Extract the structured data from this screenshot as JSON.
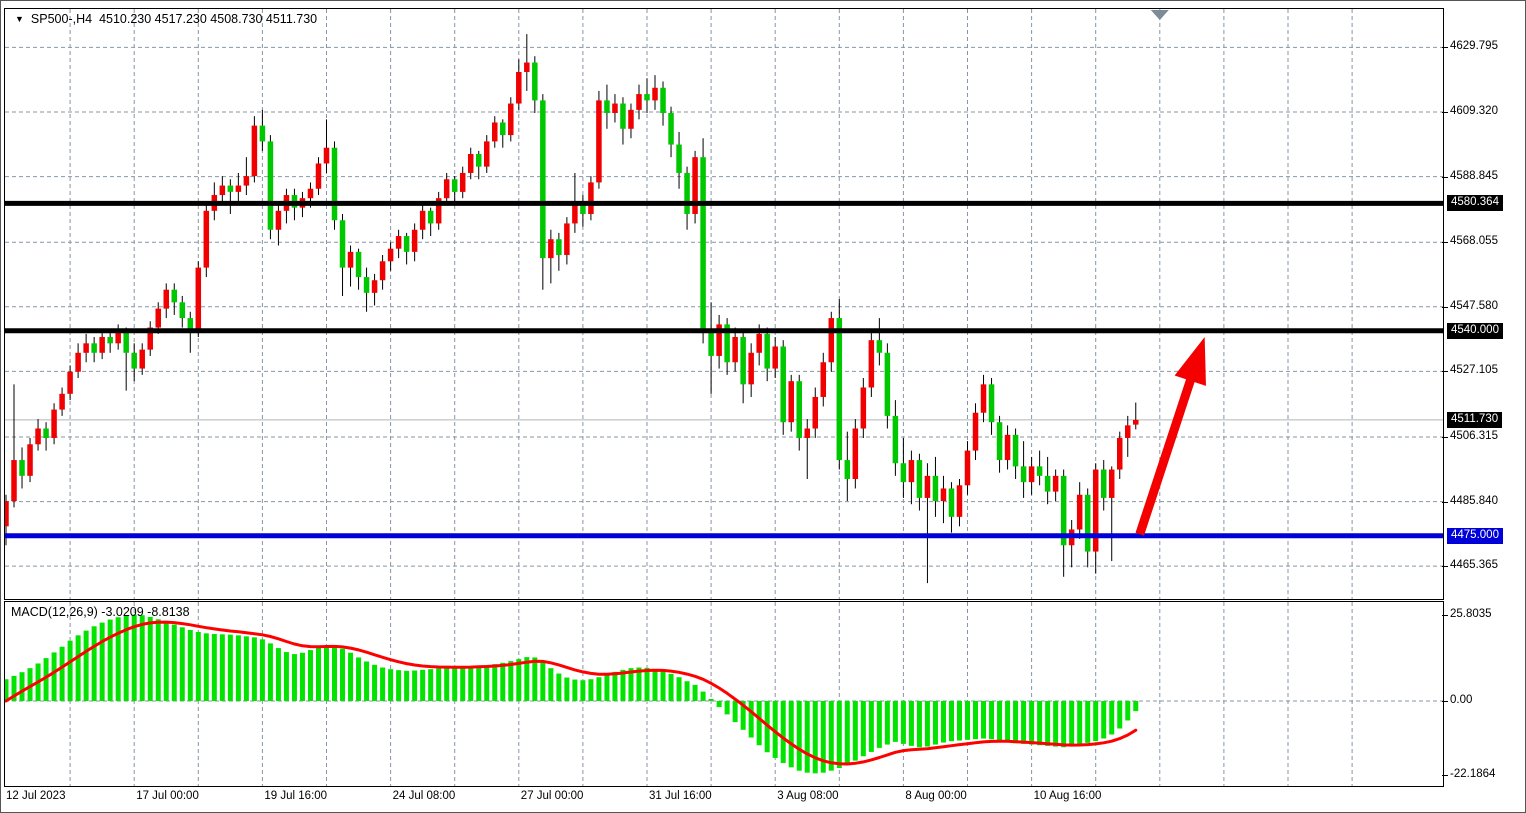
{
  "header": {
    "dropdown_icon": "▼",
    "title": "SP500-,H4",
    "ohlc_values": "4510.230 4517.230 4508.730 4511.730"
  },
  "indicator_label": "MACD(12,26,9) -3.0209 -8.8138",
  "price_axis": {
    "ticks": [
      "4629.795",
      "4609.320",
      "4588.845",
      "4568.055",
      "4547.580",
      "4527.105",
      "4506.315",
      "4485.840",
      "4465.365"
    ],
    "level_labels": [
      {
        "value": "4580.364",
        "price": 4580.364,
        "bg": "#000000",
        "fg": "#ffffff"
      },
      {
        "value": "4540.000",
        "price": 4540.0,
        "bg": "#000000",
        "fg": "#ffffff"
      },
      {
        "value": "4511.730",
        "price": 4511.73,
        "bg": "#000000",
        "fg": "#ffffff"
      },
      {
        "value": "4475.000",
        "price": 4475.0,
        "bg": "#0000d8",
        "fg": "#ffffff"
      }
    ]
  },
  "macd_axis": {
    "ticks": [
      {
        "value": "25.8035",
        "v": 25.8035
      },
      {
        "value": "0.00",
        "v": 0.0
      },
      {
        "value": "-22.1864",
        "v": -22.1864
      }
    ]
  },
  "time_axis": {
    "labels": [
      {
        "bar": 0,
        "text": "12 Jul 2023"
      },
      {
        "bar": 16,
        "text": "17 Jul 00:00"
      },
      {
        "bar": 32,
        "text": "19 Jul 16:00"
      },
      {
        "bar": 48,
        "text": "24 Jul 08:00"
      },
      {
        "bar": 64,
        "text": "27 Jul 00:00"
      },
      {
        "bar": 80,
        "text": "31 Jul 16:00"
      },
      {
        "bar": 96,
        "text": "3 Aug 08:00"
      },
      {
        "bar": 112,
        "text": "8 Aug 00:00"
      },
      {
        "bar": 128,
        "text": "10 Aug 16:00"
      }
    ]
  },
  "colors": {
    "bull_candle": "#f00000",
    "bear_candle": "#00c800",
    "wick": "#000000",
    "grid": "#8796a5",
    "histogram": "#00e400",
    "signal_line": "#ff0000",
    "level_black": "#000000",
    "level_blue": "#0000d8",
    "arrow": "#f40000",
    "current_price_line": "#b2b5b9",
    "shift_marker": "#7d8b97"
  },
  "chart_data": {
    "type": "candlestick_with_macd",
    "symbol": "SP500-",
    "timeframe": "H4",
    "price_ticks": [
      4629.795,
      4609.32,
      4588.845,
      4568.055,
      4547.58,
      4527.105,
      4506.315,
      4485.84,
      4465.365
    ],
    "price_range_visible": [
      4455,
      4640
    ],
    "grid_every_bars": 8,
    "max_gridline_bar": 168,
    "shift_marker_bar": 144,
    "current_price": 4511.73,
    "levels": [
      {
        "price": 4580.364,
        "color": "#000000",
        "width": 5,
        "label": "4580.364"
      },
      {
        "price": 4540.0,
        "color": "#000000",
        "width": 5,
        "label": "4540.000"
      },
      {
        "price": 4475.0,
        "color": "#0000d8",
        "width": 5,
        "label": "4475.000"
      }
    ],
    "arrow": {
      "from_bar": 141.5,
      "from_price": 4475.5,
      "to_bar": 149.6,
      "to_price": 4538.0
    },
    "candles": [
      [
        4478,
        4488,
        4472,
        4486
      ],
      [
        4486,
        4523,
        4484,
        4499
      ],
      [
        4499,
        4503,
        4490,
        4494
      ],
      [
        4494,
        4506,
        4492,
        4504
      ],
      [
        4504,
        4512,
        4502,
        4509
      ],
      [
        4509,
        4511,
        4502,
        4506
      ],
      [
        4506,
        4517,
        4504,
        4515
      ],
      [
        4515,
        4522,
        4513,
        4520
      ],
      [
        4520,
        4529,
        4518,
        4527
      ],
      [
        4527,
        4536,
        4525,
        4533
      ],
      [
        4533,
        4539,
        4530,
        4536
      ],
      [
        4536,
        4538,
        4530,
        4533
      ],
      [
        4533,
        4540,
        4531,
        4538
      ],
      [
        4538,
        4540,
        4533,
        4536
      ],
      [
        4536,
        4542,
        4534,
        4540
      ],
      [
        4540,
        4541,
        4521,
        4533
      ],
      [
        4533,
        4536,
        4524,
        4528
      ],
      [
        4528,
        4536,
        4526,
        4534
      ],
      [
        4534,
        4543,
        4532,
        4541
      ],
      [
        4541,
        4549,
        4539,
        4547
      ],
      [
        4547,
        4555,
        4544,
        4553
      ],
      [
        4553,
        4555,
        4545,
        4549
      ],
      [
        4549,
        4551,
        4541,
        4544
      ],
      [
        4544,
        4546,
        4533,
        4540
      ],
      [
        4540,
        4562,
        4538,
        4560
      ],
      [
        4560,
        4581,
        4557,
        4578
      ],
      [
        4578,
        4587,
        4575,
        4583
      ],
      [
        4583,
        4589,
        4580,
        4586
      ],
      [
        4586,
        4588,
        4577,
        4584
      ],
      [
        4584,
        4590,
        4581,
        4586
      ],
      [
        4586,
        4595,
        4583,
        4589
      ],
      [
        4589,
        4608,
        4587,
        4605
      ],
      [
        4605,
        4610,
        4597,
        4600
      ],
      [
        4600,
        4602,
        4569,
        4572
      ],
      [
        4572,
        4580,
        4567,
        4578
      ],
      [
        4578,
        4585,
        4574,
        4583
      ],
      [
        4583,
        4585,
        4575,
        4579
      ],
      [
        4579,
        4584,
        4576,
        4582
      ],
      [
        4582,
        4587,
        4579,
        4585
      ],
      [
        4585,
        4595,
        4583,
        4593
      ],
      [
        4593,
        4607,
        4590,
        4598
      ],
      [
        4598,
        4600,
        4572,
        4575
      ],
      [
        4575,
        4577,
        4551,
        4560
      ],
      [
        4560,
        4567,
        4554,
        4565
      ],
      [
        4565,
        4566,
        4553,
        4557
      ],
      [
        4557,
        4560,
        4546,
        4552
      ],
      [
        4552,
        4558,
        4548,
        4556
      ],
      [
        4556,
        4564,
        4553,
        4562
      ],
      [
        4562,
        4568,
        4559,
        4566
      ],
      [
        4566,
        4572,
        4563,
        4570
      ],
      [
        4570,
        4571,
        4561,
        4565
      ],
      [
        4565,
        4574,
        4562,
        4572
      ],
      [
        4572,
        4580,
        4569,
        4578
      ],
      [
        4578,
        4579,
        4570,
        4574
      ],
      [
        4574,
        4584,
        4572,
        4582
      ],
      [
        4582,
        4590,
        4580,
        4588
      ],
      [
        4588,
        4589,
        4580,
        4584
      ],
      [
        4584,
        4592,
        4582,
        4590
      ],
      [
        4590,
        4598,
        4588,
        4596
      ],
      [
        4596,
        4597,
        4588,
        4592
      ],
      [
        4592,
        4602,
        4590,
        4600
      ],
      [
        4600,
        4608,
        4598,
        4606
      ],
      [
        4606,
        4607,
        4598,
        4602
      ],
      [
        4602,
        4614,
        4600,
        4612
      ],
      [
        4612,
        4626,
        4610,
        4622
      ],
      [
        4622,
        4634,
        4616,
        4625
      ],
      [
        4625,
        4627,
        4609,
        4613
      ],
      [
        4613,
        4615,
        4553,
        4563
      ],
      [
        4563,
        4572,
        4555,
        4569
      ],
      [
        4569,
        4571,
        4559,
        4564
      ],
      [
        4564,
        4576,
        4561,
        4574
      ],
      [
        4574,
        4590,
        4571,
        4581
      ],
      [
        4581,
        4583,
        4573,
        4577
      ],
      [
        4577,
        4589,
        4575,
        4587
      ],
      [
        4587,
        4616,
        4585,
        4613
      ],
      [
        4613,
        4618,
        4604,
        4609
      ],
      [
        4609,
        4615,
        4606,
        4612
      ],
      [
        4612,
        4614,
        4599,
        4604
      ],
      [
        4604,
        4612,
        4601,
        4610
      ],
      [
        4610,
        4618,
        4607,
        4615
      ],
      [
        4615,
        4620,
        4609,
        4613
      ],
      [
        4613,
        4621,
        4610,
        4617
      ],
      [
        4617,
        4619,
        4605,
        4609
      ],
      [
        4609,
        4611,
        4595,
        4599
      ],
      [
        4599,
        4603,
        4585,
        4590
      ],
      [
        4590,
        4592,
        4572,
        4577
      ],
      [
        4577,
        4597,
        4574,
        4595
      ],
      [
        4595,
        4601,
        4536,
        4540
      ],
      [
        4540,
        4549,
        4520,
        4532
      ],
      [
        4532,
        4545,
        4528,
        4542
      ],
      [
        4542,
        4544,
        4526,
        4530
      ],
      [
        4530,
        4541,
        4527,
        4538
      ],
      [
        4538,
        4540,
        4517,
        4523
      ],
      [
        4523,
        4536,
        4519,
        4533
      ],
      [
        4533,
        4542,
        4529,
        4539
      ],
      [
        4539,
        4541,
        4524,
        4528
      ],
      [
        4528,
        4538,
        4525,
        4535
      ],
      [
        4535,
        4537,
        4507,
        4511
      ],
      [
        4511,
        4526,
        4508,
        4524
      ],
      [
        4524,
        4526,
        4502,
        4506
      ],
      [
        4506,
        4512,
        4493,
        4509
      ],
      [
        4509,
        4522,
        4506,
        4519
      ],
      [
        4519,
        4533,
        4516,
        4530
      ],
      [
        4530,
        4546,
        4527,
        4544
      ],
      [
        4544,
        4550,
        4496,
        4499
      ],
      [
        4499,
        4508,
        4486,
        4493
      ],
      [
        4493,
        4512,
        4490,
        4509
      ],
      [
        4509,
        4525,
        4506,
        4522
      ],
      [
        4522,
        4540,
        4519,
        4537
      ],
      [
        4537,
        4544,
        4529,
        4533
      ],
      [
        4533,
        4536,
        4509,
        4513
      ],
      [
        4513,
        4518,
        4494,
        4498
      ],
      [
        4498,
        4506,
        4487,
        4492
      ],
      [
        4492,
        4502,
        4485,
        4499
      ],
      [
        4499,
        4501,
        4483,
        4487
      ],
      [
        4487,
        4498,
        4460,
        4494
      ],
      [
        4494,
        4500,
        4481,
        4486
      ],
      [
        4486,
        4494,
        4479,
        4490
      ],
      [
        4490,
        4492,
        4476,
        4481
      ],
      [
        4481,
        4493,
        4478,
        4491
      ],
      [
        4491,
        4505,
        4488,
        4502
      ],
      [
        4502,
        4517,
        4499,
        4514
      ],
      [
        4514,
        4526,
        4511,
        4523
      ],
      [
        4523,
        4525,
        4507,
        4511
      ],
      [
        4511,
        4513,
        4495,
        4499
      ],
      [
        4499,
        4510,
        4496,
        4507
      ],
      [
        4507,
        4509,
        4493,
        4497
      ],
      [
        4497,
        4505,
        4487,
        4492
      ],
      [
        4492,
        4500,
        4488,
        4497
      ],
      [
        4497,
        4502,
        4491,
        4494
      ],
      [
        4494,
        4500,
        4485,
        4489
      ],
      [
        4489,
        4496,
        4486,
        4494
      ],
      [
        4494,
        4496,
        4462,
        4472
      ],
      [
        4472,
        4480,
        4465,
        4477
      ],
      [
        4477,
        4492,
        4474,
        4488
      ],
      [
        4488,
        4490,
        4465,
        4470
      ],
      [
        4470,
        4498,
        4463,
        4496
      ],
      [
        4496,
        4499,
        4483,
        4487
      ],
      [
        4487,
        4497,
        4467,
        4496
      ],
      [
        4496,
        4508,
        4493,
        4506
      ],
      [
        4506,
        4513,
        4500,
        4510
      ],
      [
        4510.23,
        4517.23,
        4508.73,
        4511.73
      ]
    ],
    "macd": {
      "params": "12,26,9",
      "main_last": -3.0209,
      "signal_last": -8.8138,
      "signal_period": 9,
      "histogram": [
        6.5,
        7.5,
        8.6,
        9.8,
        11.2,
        12.8,
        14.5,
        16.2,
        18.0,
        19.6,
        21.0,
        22.3,
        23.4,
        24.3,
        25.0,
        25.5,
        25.8,
        25.6,
        25.1,
        24.4,
        23.6,
        22.8,
        22.0,
        21.2,
        20.6,
        20.2,
        20.0,
        19.9,
        19.8,
        19.6,
        19.3,
        19.0,
        18.4,
        17.2,
        15.8,
        14.6,
        14.0,
        14.4,
        15.2,
        16.0,
        16.6,
        16.4,
        15.6,
        14.4,
        13.0,
        11.8,
        10.8,
        10.0,
        9.5,
        9.2,
        9.0,
        9.1,
        9.3,
        9.5,
        9.7,
        9.9,
        10.0,
        10.1,
        10.3,
        10.5,
        10.7,
        11.0,
        11.4,
        11.9,
        12.5,
        13.1,
        13.0,
        11.6,
        9.8,
        8.2,
        7.0,
        6.4,
        6.2,
        6.5,
        7.1,
        7.9,
        8.7,
        9.3,
        9.8,
        10.0,
        9.9,
        9.5,
        8.9,
        8.1,
        7.1,
        5.9,
        4.8,
        2.8,
        0.6,
        -1.8,
        -4.0,
        -6.3,
        -8.6,
        -10.9,
        -13.2,
        -15.3,
        -17.0,
        -18.5,
        -19.8,
        -20.8,
        -21.4,
        -21.6,
        -21.4,
        -20.8,
        -20.0,
        -19.0,
        -17.8,
        -16.5,
        -15.2,
        -14.0,
        -13.0,
        -12.2,
        -12.8,
        -13.4,
        -13.8,
        -13.6,
        -13.0,
        -12.4,
        -12.0,
        -11.8,
        -11.6,
        -11.4,
        -11.2,
        -11.4,
        -11.8,
        -12.2,
        -12.6,
        -12.8,
        -13.0,
        -13.2,
        -13.4,
        -13.6,
        -13.8,
        -13.5,
        -13.0,
        -12.5,
        -12.0,
        -11.2,
        -10.0,
        -8.2,
        -5.8,
        -3.02
      ]
    }
  }
}
